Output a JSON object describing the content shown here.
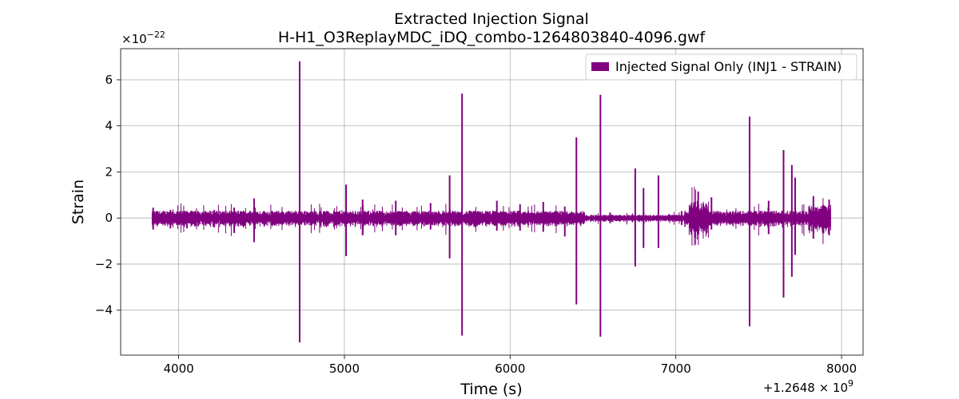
{
  "chart_data": {
    "type": "line",
    "title": "Extracted Injection Signal",
    "subtitle": "H-H1_O3ReplayMDC_iDQ_combo-1264803840-4096.gwf",
    "xlabel": "Time (s)",
    "ylabel": "Strain",
    "x_offset_label": "+1.2648 × 10",
    "x_offset_exponent": "9",
    "y_multiplier_label": "×10",
    "y_multiplier_exponent": "−22",
    "xlim": [
      3650,
      8130
    ],
    "ylim": [
      -5.95,
      7.35
    ],
    "xticks": [
      4000,
      5000,
      6000,
      7000,
      8000
    ],
    "xtick_labels": [
      "4000",
      "5000",
      "6000",
      "7000",
      "8000"
    ],
    "yticks": [
      -4,
      -2,
      0,
      2,
      4,
      6
    ],
    "ytick_labels": [
      "−4",
      "−2",
      "0",
      "2",
      "4",
      "6"
    ],
    "grid": true,
    "legend_position": "top-right",
    "series": [
      {
        "name": "Injected Signal Only (INJ1 - STRAIN)",
        "color": "#800080",
        "x_range": [
          3840,
          7936
        ],
        "spikes": [
          {
            "x": 3846,
            "max": 0.45,
            "min": -0.5
          },
          {
            "x": 3950,
            "max": 0.35,
            "min": -0.45
          },
          {
            "x": 4050,
            "max": 0.3,
            "min": -0.45
          },
          {
            "x": 4215,
            "max": 0.35,
            "min": -0.4
          },
          {
            "x": 4335,
            "max": 0.45,
            "min": -0.65
          },
          {
            "x": 4455,
            "max": 0.85,
            "min": -1.05
          },
          {
            "x": 4730,
            "max": 6.8,
            "min": -5.4
          },
          {
            "x": 4900,
            "max": 0.3,
            "min": -0.35
          },
          {
            "x": 5010,
            "max": 1.45,
            "min": -1.65
          },
          {
            "x": 5110,
            "max": 0.8,
            "min": -0.75
          },
          {
            "x": 5310,
            "max": 0.75,
            "min": -0.75
          },
          {
            "x": 5520,
            "max": 0.65,
            "min": -0.5
          },
          {
            "x": 5635,
            "max": 1.85,
            "min": -1.75
          },
          {
            "x": 5710,
            "max": 5.4,
            "min": -5.1
          },
          {
            "x": 5920,
            "max": 0.75,
            "min": -0.55
          },
          {
            "x": 6060,
            "max": 0.6,
            "min": -0.55
          },
          {
            "x": 6200,
            "max": 0.7,
            "min": -0.6
          },
          {
            "x": 6330,
            "max": 0.5,
            "min": -0.8
          },
          {
            "x": 6400,
            "max": 3.5,
            "min": -3.75
          },
          {
            "x": 6545,
            "max": 5.35,
            "min": -5.15
          },
          {
            "x": 6755,
            "max": 2.15,
            "min": -2.1
          },
          {
            "x": 6805,
            "max": 1.3,
            "min": -1.3
          },
          {
            "x": 6895,
            "max": 1.85,
            "min": -1.3
          },
          {
            "x": 7035,
            "max": 0.3,
            "min": -0.3
          },
          {
            "x": 7090,
            "max": 0.55,
            "min": -0.5
          },
          {
            "x": 7135,
            "max": 1.15,
            "min": -0.7
          },
          {
            "x": 7215,
            "max": 0.9,
            "min": -0.5
          },
          {
            "x": 7445,
            "max": 4.4,
            "min": -4.7
          },
          {
            "x": 7560,
            "max": 0.75,
            "min": -0.7
          },
          {
            "x": 7650,
            "max": 2.95,
            "min": -3.45
          },
          {
            "x": 7700,
            "max": 2.3,
            "min": -2.55
          },
          {
            "x": 7720,
            "max": 1.75,
            "min": -1.6
          },
          {
            "x": 7830,
            "max": 0.95,
            "min": -0.9
          },
          {
            "x": 7925,
            "max": 0.8,
            "min": -0.75
          }
        ]
      }
    ]
  }
}
